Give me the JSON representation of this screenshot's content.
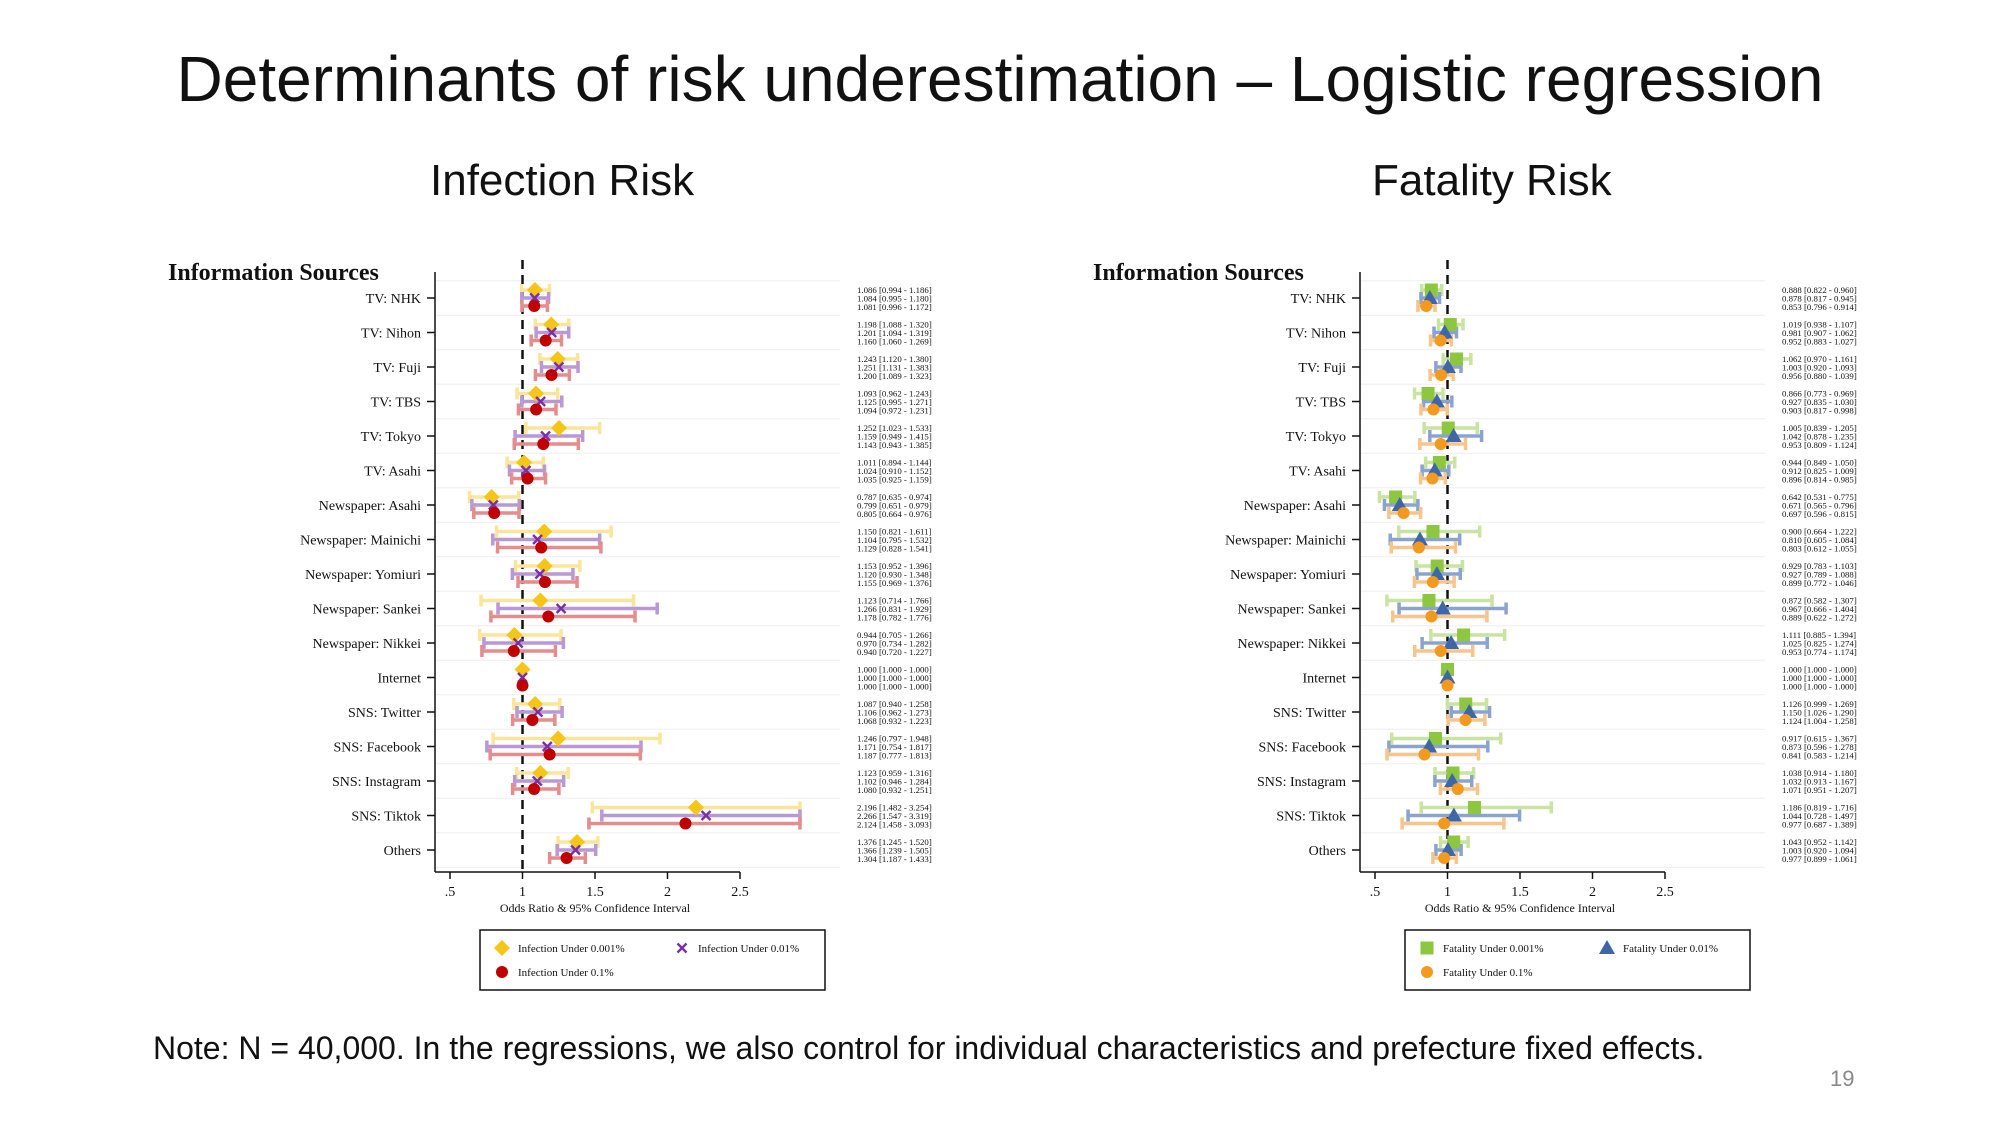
{
  "slide": {
    "title": "Determinants of risk underestimation – Logistic regression",
    "note": "Note: N = 40,000. In the regressions, we also control for individual characteristics and prefecture fixed effects.",
    "page_number": "19"
  },
  "colors": {
    "infection": [
      "#F5C518",
      "#7B2FA6",
      "#C00000"
    ],
    "infection_ci": [
      "#FBE59A",
      "#B998D6",
      "#E58C8C"
    ],
    "fatality": [
      "#8DC63F",
      "#3F67A8",
      "#F39A1E"
    ],
    "fatality_ci": [
      "#C9E3A0",
      "#8AA3CF",
      "#F7C58C"
    ]
  },
  "chart_data": [
    {
      "type": "forest",
      "title": "Infection Risk",
      "category_header": "Information Sources",
      "xlabel": "Odds Ratio & 95% Confidence Interval",
      "xlim": [
        0.5,
        2.5
      ],
      "xticks": [
        ".5",
        "1",
        "1.5",
        "2",
        "2.5"
      ],
      "reference_line": 1,
      "categories": [
        "TV: NHK",
        "TV: Nihon",
        "TV: Fuji",
        "TV: TBS",
        "TV: Tokyo",
        "TV: Asahi",
        "Newspaper: Asahi",
        "Newspaper: Mainichi",
        "Newspaper: Yomiuri",
        "Newspaper: Sankei",
        "Newspaper: Nikkei",
        "Internet",
        "SNS: Twitter",
        "SNS: Facebook",
        "SNS: Instagram",
        "SNS: Tiktok",
        "Others"
      ],
      "series": [
        {
          "name": "Infection Under 0.001%",
          "marker": "diamond",
          "values": [
            1.086,
            1.198,
            1.243,
            1.093,
            1.252,
            1.011,
            0.787,
            1.15,
            1.153,
            1.123,
            0.944,
            1.0,
            1.087,
            1.246,
            1.123,
            2.196,
            1.376
          ],
          "ci": [
            [
              "0.994",
              "1.186"
            ],
            [
              "1.088",
              "1.320"
            ],
            [
              "1.120",
              "1.380"
            ],
            [
              "0.962",
              "1.243"
            ],
            [
              "1.023",
              "1.533"
            ],
            [
              "0.894",
              "1.144"
            ],
            [
              "0.635",
              "0.974"
            ],
            [
              "0.821",
              "1.611"
            ],
            [
              "0.952",
              "1.396"
            ],
            [
              "0.714",
              "1.766"
            ],
            [
              "0.705",
              "1.266"
            ],
            [
              "1.000",
              "1.000"
            ],
            [
              "0.940",
              "1.258"
            ],
            [
              "0.797",
              "1.948"
            ],
            [
              "0.959",
              "1.316"
            ],
            [
              "1.482",
              "3.254"
            ],
            [
              "1.245",
              "1.520"
            ]
          ]
        },
        {
          "name": "Infection Under 0.01%",
          "marker": "x",
          "values": [
            1.084,
            1.201,
            1.251,
            1.125,
            1.159,
            1.024,
            0.799,
            1.104,
            1.12,
            1.266,
            0.97,
            1.0,
            1.106,
            1.171,
            1.102,
            2.266,
            1.366
          ],
          "ci": [
            [
              "0.995",
              "1.180"
            ],
            [
              "1.094",
              "1.319"
            ],
            [
              "1.131",
              "1.383"
            ],
            [
              "0.995",
              "1.271"
            ],
            [
              "0.949",
              "1.415"
            ],
            [
              "0.910",
              "1.152"
            ],
            [
              "0.651",
              "0.979"
            ],
            [
              "0.795",
              "1.532"
            ],
            [
              "0.930",
              "1.348"
            ],
            [
              "0.831",
              "1.929"
            ],
            [
              "0.734",
              "1.282"
            ],
            [
              "1.000",
              "1.000"
            ],
            [
              "0.962",
              "1.273"
            ],
            [
              "0.754",
              "1.817"
            ],
            [
              "0.946",
              "1.284"
            ],
            [
              "1.547",
              "3.319"
            ],
            [
              "1.239",
              "1.505"
            ]
          ]
        },
        {
          "name": "Infection Under 0.1%",
          "marker": "circle",
          "values": [
            1.081,
            1.16,
            1.2,
            1.094,
            1.143,
            1.035,
            0.805,
            1.129,
            1.155,
            1.178,
            0.94,
            1.0,
            1.068,
            1.187,
            1.08,
            2.124,
            1.304
          ],
          "ci": [
            [
              "0.996",
              "1.172"
            ],
            [
              "1.060",
              "1.269"
            ],
            [
              "1.089",
              "1.323"
            ],
            [
              "0.972",
              "1.231"
            ],
            [
              "0.943",
              "1.385"
            ],
            [
              "0.925",
              "1.159"
            ],
            [
              "0.664",
              "0.976"
            ],
            [
              "0.828",
              "1.541"
            ],
            [
              "0.969",
              "1.376"
            ],
            [
              "0.782",
              "1.776"
            ],
            [
              "0.720",
              "1.227"
            ],
            [
              "1.000",
              "1.000"
            ],
            [
              "0.932",
              "1.223"
            ],
            [
              "0.777",
              "1.813"
            ],
            [
              "0.932",
              "1.251"
            ],
            [
              "1.458",
              "3.093"
            ],
            [
              "1.187",
              "1.433"
            ]
          ]
        }
      ],
      "legend": [
        "Infection Under 0.001%",
        "Infection Under 0.01%",
        "Infection Under 0.1%"
      ]
    },
    {
      "type": "forest",
      "title": "Fatality Risk",
      "category_header": "Information Sources",
      "xlabel": "Odds Ratio & 95% Confidence Interval",
      "xlim": [
        0.5,
        2.5
      ],
      "xticks": [
        ".5",
        "1",
        "1.5",
        "2",
        "2.5"
      ],
      "reference_line": 1,
      "categories": [
        "TV: NHK",
        "TV: Nihon",
        "TV: Fuji",
        "TV: TBS",
        "TV: Tokyo",
        "TV: Asahi",
        "Newspaper: Asahi",
        "Newspaper: Mainichi",
        "Newspaper: Yomiuri",
        "Newspaper: Sankei",
        "Newspaper: Nikkei",
        "Internet",
        "SNS: Twitter",
        "SNS: Facebook",
        "SNS: Instagram",
        "SNS: Tiktok",
        "Others"
      ],
      "series": [
        {
          "name": "Fatality Under 0.001%",
          "marker": "square",
          "values": [
            0.888,
            1.019,
            1.062,
            0.866,
            1.005,
            0.944,
            0.642,
            0.9,
            0.929,
            0.872,
            1.111,
            1.0,
            1.126,
            0.917,
            1.038,
            1.186,
            1.043
          ],
          "ci": [
            [
              "0.822",
              "0.960"
            ],
            [
              "0.938",
              "1.107"
            ],
            [
              "0.970",
              "1.161"
            ],
            [
              "0.773",
              "0.969"
            ],
            [
              "0.839",
              "1.205"
            ],
            [
              "0.849",
              "1.050"
            ],
            [
              "0.531",
              "0.775"
            ],
            [
              "0.664",
              "1.222"
            ],
            [
              "0.783",
              "1.103"
            ],
            [
              "0.582",
              "1.307"
            ],
            [
              "0.885",
              "1.394"
            ],
            [
              "1.000",
              "1.000"
            ],
            [
              "0.999",
              "1.269"
            ],
            [
              "0.615",
              "1.367"
            ],
            [
              "0.914",
              "1.180"
            ],
            [
              "0.819",
              "1.716"
            ],
            [
              "0.952",
              "1.142"
            ]
          ]
        },
        {
          "name": "Fatality Under 0.01%",
          "marker": "triangle",
          "values": [
            0.878,
            0.981,
            1.003,
            0.927,
            1.042,
            0.912,
            0.671,
            0.81,
            0.927,
            0.967,
            1.025,
            1.0,
            1.15,
            0.873,
            1.032,
            1.044,
            1.003
          ],
          "ci": [
            [
              "0.817",
              "0.945"
            ],
            [
              "0.907",
              "1.062"
            ],
            [
              "0.920",
              "1.093"
            ],
            [
              "0.835",
              "1.030"
            ],
            [
              "0.878",
              "1.235"
            ],
            [
              "0.825",
              "1.009"
            ],
            [
              "0.565",
              "0.796"
            ],
            [
              "0.605",
              "1.084"
            ],
            [
              "0.789",
              "1.088"
            ],
            [
              "0.666",
              "1.404"
            ],
            [
              "0.825",
              "1.274"
            ],
            [
              "1.000",
              "1.000"
            ],
            [
              "1.026",
              "1.290"
            ],
            [
              "0.596",
              "1.278"
            ],
            [
              "0.913",
              "1.167"
            ],
            [
              "0.728",
              "1.497"
            ],
            [
              "0.920",
              "1.094"
            ]
          ]
        },
        {
          "name": "Fatality Under 0.1%",
          "marker": "circle",
          "values": [
            0.853,
            0.952,
            0.956,
            0.903,
            0.953,
            0.896,
            0.697,
            0.803,
            0.899,
            0.889,
            0.953,
            1.0,
            1.124,
            0.841,
            1.071,
            0.977,
            0.977
          ],
          "ci": [
            [
              "0.796",
              "0.914"
            ],
            [
              "0.883",
              "1.027"
            ],
            [
              "0.880",
              "1.039"
            ],
            [
              "0.817",
              "0.998"
            ],
            [
              "0.809",
              "1.124"
            ],
            [
              "0.814",
              "0.985"
            ],
            [
              "0.596",
              "0.815"
            ],
            [
              "0.612",
              "1.055"
            ],
            [
              "0.772",
              "1.046"
            ],
            [
              "0.622",
              "1.272"
            ],
            [
              "0.774",
              "1.174"
            ],
            [
              "1.000",
              "1.000"
            ],
            [
              "1.004",
              "1.258"
            ],
            [
              "0.583",
              "1.214"
            ],
            [
              "0.951",
              "1.207"
            ],
            [
              "0.687",
              "1.389"
            ],
            [
              "0.899",
              "1.061"
            ]
          ]
        }
      ],
      "legend": [
        "Fatality Under 0.001%",
        "Fatality Under 0.01%",
        "Fatality Under 0.1%"
      ]
    }
  ]
}
